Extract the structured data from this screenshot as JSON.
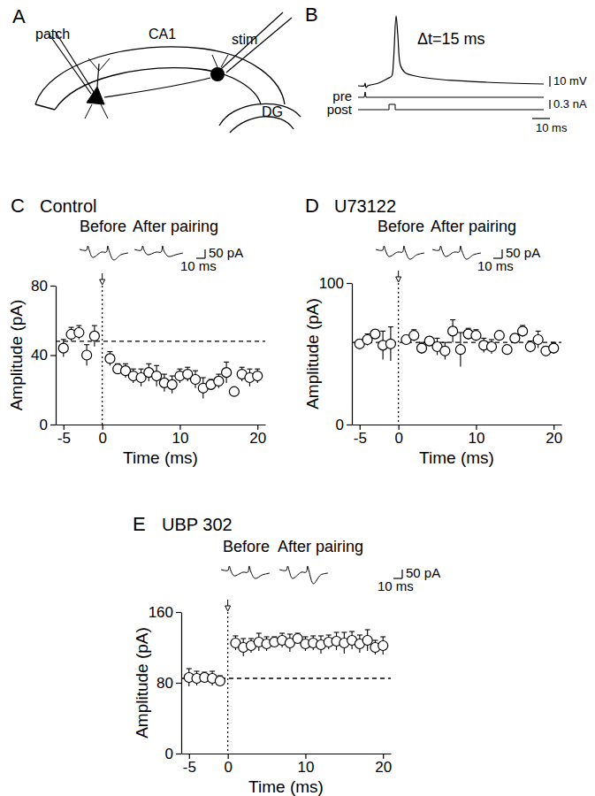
{
  "diagram": {
    "panel_a": {
      "panel": "A",
      "electrodes": [
        "patch",
        "stim"
      ],
      "regions": [
        "CA1",
        "DG"
      ]
    },
    "panel_b": {
      "panel": "B",
      "annotation": "Δt=15 ms",
      "trace_labels": [
        "pre",
        "post"
      ],
      "scale_bars": [
        "10 mV",
        "0.3 nA",
        "10 ms"
      ]
    }
  },
  "chart_data": [
    {
      "type": "scatter",
      "panel": "C",
      "title": "Control",
      "inset_labels": [
        "Before",
        "After pairing"
      ],
      "inset_scale_bars": [
        "50 pA",
        "10 ms"
      ],
      "x_label": "Time (ms)",
      "y_label": "Amplitude (pA)",
      "marker": "circle",
      "x": [
        -5,
        -4,
        -3,
        -2,
        -1,
        1,
        2,
        3,
        4,
        5,
        6,
        7,
        8,
        9,
        10,
        11,
        12,
        13,
        14,
        15,
        16,
        17,
        18,
        19,
        20
      ],
      "values": [
        44,
        52,
        53,
        40,
        51,
        38,
        32,
        31,
        28,
        27,
        30,
        28,
        24,
        23,
        28,
        29,
        26,
        21,
        23,
        25,
        30,
        19,
        29,
        27,
        28
      ],
      "errors": [
        5,
        4,
        4,
        6,
        6,
        4,
        3,
        4,
        4,
        5,
        5,
        6,
        5,
        5,
        4,
        4,
        5,
        6,
        3,
        4,
        6,
        2,
        4,
        5,
        4
      ],
      "baseline": 48,
      "pairing_time": 0,
      "xlim": [
        -6,
        21
      ],
      "ylim": [
        0,
        80
      ],
      "xticks": [
        -5,
        0,
        10,
        20
      ],
      "yticks": [
        0,
        40,
        80
      ]
    },
    {
      "type": "scatter",
      "panel": "D",
      "title": "U73122",
      "inset_labels": [
        "Before",
        "After pairing"
      ],
      "inset_scale_bars": [
        "50 pA",
        "10 ms"
      ],
      "x_label": "Time (ms)",
      "y_label": "Amplitude (pA)",
      "marker": "circle",
      "x": [
        -5,
        -4,
        -3,
        -2,
        -1,
        1,
        2,
        3,
        4,
        5,
        6,
        7,
        8,
        9,
        10,
        11,
        12,
        13,
        14,
        15,
        16,
        17,
        18,
        19,
        20
      ],
      "values": [
        57,
        60,
        64,
        56,
        57,
        60,
        63,
        54,
        59,
        55,
        52,
        66,
        53,
        64,
        63,
        56,
        55,
        63,
        53,
        61,
        66,
        55,
        60,
        52,
        54
      ],
      "errors": [
        3,
        4,
        3,
        10,
        12,
        3,
        4,
        4,
        3,
        6,
        6,
        8,
        12,
        4,
        4,
        5,
        5,
        3,
        3,
        3,
        4,
        4,
        6,
        3,
        4
      ],
      "baseline": 58,
      "pairing_time": 0,
      "xlim": [
        -6,
        21
      ],
      "ylim": [
        0,
        100
      ],
      "xticks": [
        -5,
        0,
        10,
        20
      ],
      "yticks": [
        0,
        100
      ]
    },
    {
      "type": "scatter",
      "panel": "E",
      "title": "UBP 302",
      "inset_labels": [
        "Before",
        "After pairing"
      ],
      "inset_scale_bars": [
        "50 pA",
        "10 ms"
      ],
      "x_label": "Time (ms)",
      "y_label": "Amplitude (pA)",
      "marker": "circle",
      "x": [
        -5,
        -4,
        -3,
        -2,
        -1,
        1,
        2,
        3,
        4,
        5,
        6,
        7,
        8,
        9,
        10,
        11,
        12,
        13,
        14,
        15,
        16,
        17,
        18,
        19,
        20
      ],
      "values": [
        86,
        85,
        86,
        85,
        82,
        125,
        120,
        122,
        126,
        124,
        126,
        128,
        125,
        130,
        124,
        125,
        123,
        126,
        127,
        125,
        128,
        124,
        128,
        120,
        122
      ],
      "errors": [
        10,
        8,
        6,
        8,
        6,
        8,
        10,
        8,
        10,
        8,
        6,
        8,
        10,
        6,
        8,
        8,
        10,
        8,
        10,
        12,
        10,
        10,
        12,
        8,
        10
      ],
      "baseline": 85,
      "pairing_time": 0,
      "xlim": [
        -6,
        21
      ],
      "ylim": [
        0,
        160
      ],
      "xticks": [
        -5,
        0,
        10,
        20
      ],
      "yticks": [
        0,
        80,
        160
      ]
    }
  ]
}
